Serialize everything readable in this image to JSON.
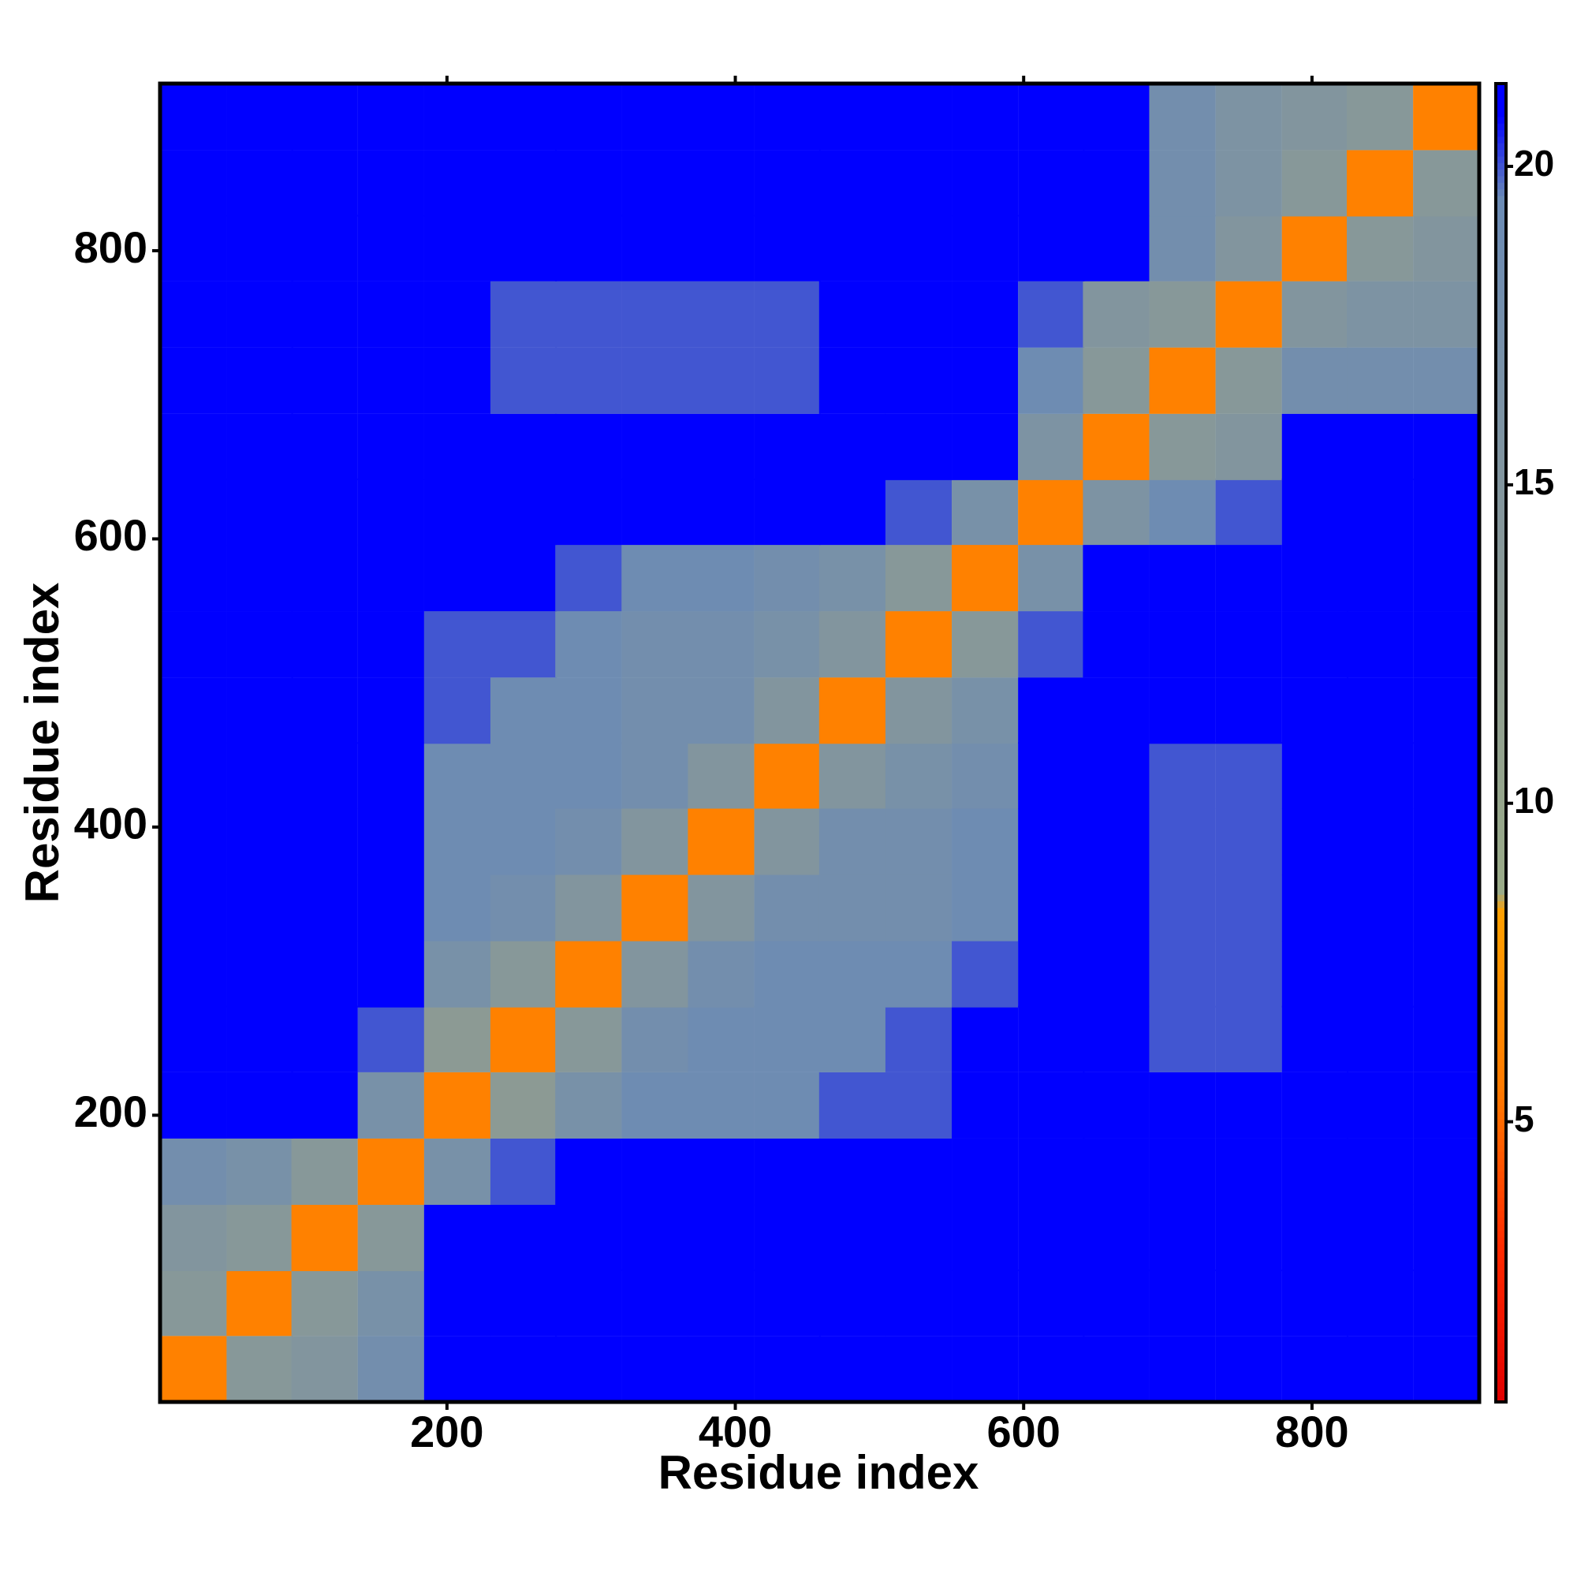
{
  "chart_data": {
    "type": "heatmap",
    "xlabel": "Residue index",
    "ylabel": "Residue index",
    "x": [
      24,
      70,
      115,
      161,
      207,
      253,
      298,
      344,
      390,
      436,
      481,
      527,
      573,
      619,
      664,
      710,
      756,
      802,
      847,
      893
    ],
    "y": [
      24,
      70,
      115,
      161,
      207,
      253,
      298,
      344,
      390,
      436,
      481,
      527,
      573,
      619,
      664,
      710,
      756,
      802,
      847,
      893
    ],
    "z": [
      [
        6,
        14,
        15,
        18,
        21,
        21,
        21,
        21,
        21,
        21,
        21,
        21,
        21,
        21,
        21,
        21,
        21,
        21,
        21,
        21
      ],
      [
        14,
        6,
        14,
        17,
        21,
        21,
        21,
        21,
        21,
        21,
        21,
        21,
        21,
        21,
        21,
        21,
        21,
        21,
        21,
        21
      ],
      [
        15,
        14,
        6,
        14,
        21,
        21,
        21,
        21,
        21,
        21,
        21,
        21,
        21,
        21,
        21,
        21,
        21,
        21,
        21,
        21
      ],
      [
        18,
        17,
        14,
        6,
        17,
        20,
        21,
        21,
        21,
        21,
        21,
        21,
        21,
        21,
        21,
        21,
        21,
        21,
        21,
        21
      ],
      [
        21,
        21,
        21,
        17,
        6,
        13,
        17,
        19,
        19,
        19,
        20,
        20,
        21,
        21,
        21,
        21,
        21,
        21,
        21,
        21
      ],
      [
        21,
        21,
        21,
        20,
        13,
        6,
        14,
        18,
        19,
        19,
        19,
        20,
        21,
        21,
        21,
        20,
        20,
        21,
        21,
        21
      ],
      [
        21,
        21,
        21,
        21,
        17,
        14,
        6,
        15,
        18,
        19,
        19,
        19,
        20,
        21,
        21,
        20,
        20,
        21,
        21,
        21
      ],
      [
        21,
        21,
        21,
        21,
        19,
        18,
        15,
        6,
        15,
        18,
        18,
        18,
        19,
        21,
        21,
        20,
        20,
        21,
        21,
        21
      ],
      [
        21,
        21,
        21,
        21,
        19,
        19,
        18,
        15,
        6,
        15,
        18,
        18,
        19,
        21,
        21,
        20,
        20,
        21,
        21,
        21
      ],
      [
        21,
        21,
        21,
        21,
        19,
        19,
        19,
        18,
        15,
        6,
        15,
        17,
        18,
        21,
        21,
        20,
        20,
        21,
        21,
        21
      ],
      [
        21,
        21,
        21,
        21,
        20,
        19,
        19,
        18,
        18,
        15,
        6,
        15,
        17,
        21,
        21,
        21,
        21,
        21,
        21,
        21
      ],
      [
        21,
        21,
        21,
        21,
        20,
        20,
        19,
        18,
        18,
        17,
        15,
        6,
        14,
        20,
        21,
        21,
        21,
        21,
        21,
        21
      ],
      [
        21,
        21,
        21,
        21,
        21,
        21,
        20,
        19,
        19,
        18,
        17,
        14,
        6,
        17,
        21,
        21,
        21,
        21,
        21,
        21
      ],
      [
        21,
        21,
        21,
        21,
        21,
        21,
        21,
        21,
        21,
        21,
        21,
        20,
        17,
        6,
        16,
        19,
        20,
        21,
        21,
        21
      ],
      [
        21,
        21,
        21,
        21,
        21,
        21,
        21,
        21,
        21,
        21,
        21,
        21,
        21,
        16,
        6,
        14,
        15,
        21,
        21,
        21
      ],
      [
        21,
        21,
        21,
        21,
        21,
        20,
        20,
        20,
        20,
        20,
        21,
        21,
        21,
        19,
        14,
        6,
        14,
        18,
        18,
        18
      ],
      [
        21,
        21,
        21,
        21,
        21,
        20,
        20,
        20,
        20,
        20,
        21,
        21,
        21,
        20,
        15,
        14,
        6,
        15,
        16,
        16
      ],
      [
        21,
        21,
        21,
        21,
        21,
        21,
        21,
        21,
        21,
        21,
        21,
        21,
        21,
        21,
        21,
        18,
        15,
        6,
        14,
        15
      ],
      [
        21,
        21,
        21,
        21,
        21,
        21,
        21,
        21,
        21,
        21,
        21,
        21,
        21,
        21,
        21,
        18,
        16,
        14,
        6,
        14
      ],
      [
        21,
        21,
        21,
        21,
        21,
        21,
        21,
        21,
        21,
        21,
        21,
        21,
        21,
        21,
        21,
        18,
        16,
        15,
        14,
        6
      ]
    ],
    "xlim": [
      1,
      916
    ],
    "ylim": [
      1,
      916
    ],
    "xticks": [
      200,
      400,
      600,
      800
    ],
    "yticks": [
      200,
      400,
      600,
      800
    ],
    "colorlim": [
      0.6,
      21.3
    ],
    "colorticks": [
      5,
      10,
      15,
      20
    ],
    "colorscale": [
      {
        "value": 0.6,
        "color": "#e00000"
      },
      {
        "value": 3,
        "color": "#ff2a00"
      },
      {
        "value": 5.5,
        "color": "#ff7a00"
      },
      {
        "value": 8.3,
        "color": "#ffa000"
      },
      {
        "value": 8.6,
        "color": "#9aab88"
      },
      {
        "value": 13,
        "color": "#8c9a94"
      },
      {
        "value": 19.5,
        "color": "#6b8bb5"
      },
      {
        "value": 20.8,
        "color": "#0000ff"
      },
      {
        "value": 21.3,
        "color": "#0000ff"
      }
    ]
  }
}
